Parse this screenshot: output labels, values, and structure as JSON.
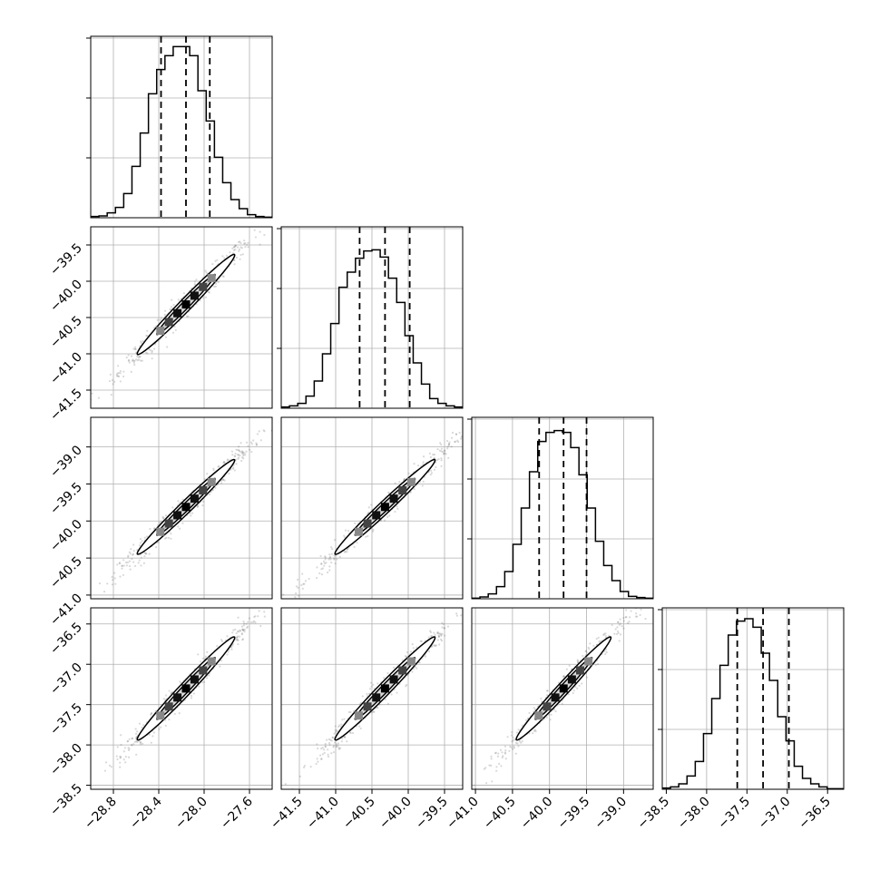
{
  "chart_data": {
    "type": "corner",
    "title": "",
    "grid": true,
    "colors": {
      "line": "#000000",
      "grid": "#b0b0b0",
      "scatter": "#666666"
    },
    "parameters": [
      {
        "index": 0,
        "range": [
          -29.0,
          -27.4
        ],
        "ticks": [
          -28.8,
          -28.4,
          -28.0,
          -27.6
        ],
        "tick_labels": [
          "−28.8",
          "−28.4",
          "−28.0",
          "−27.6"
        ],
        "quantiles": [
          -28.38,
          -28.16,
          -27.95
        ]
      },
      {
        "index": 1,
        "range": [
          -41.75,
          -39.25
        ],
        "ticks": [
          -41.5,
          -41.0,
          -40.5,
          -40.0,
          -39.5
        ],
        "tick_labels": [
          "−41.5",
          "−41.0",
          "−40.5",
          "−40.0",
          "−39.5"
        ],
        "quantiles": [
          -40.67,
          -40.32,
          -39.98
        ]
      },
      {
        "index": 2,
        "range": [
          -41.05,
          -38.6
        ],
        "ticks": [
          -41.0,
          -40.5,
          -40.0,
          -39.5,
          -39.0
        ],
        "tick_labels": [
          "−41.0",
          "−40.5",
          "−40.0",
          "−39.5",
          "−39.0"
        ],
        "quantiles": [
          -40.14,
          -39.81,
          -39.5
        ]
      },
      {
        "index": 3,
        "range": [
          -38.55,
          -36.3
        ],
        "ticks": [
          -38.5,
          -38.0,
          -37.5,
          -37.0,
          -36.5
        ],
        "tick_labels": [
          "−38.5",
          "−38.0",
          "−37.5",
          "−37.0",
          "−36.5"
        ],
        "quantiles": [
          -37.62,
          -37.3,
          -36.98
        ]
      }
    ],
    "hist_counts": [
      [
        2,
        3,
        8,
        17,
        40,
        85,
        140,
        205,
        245,
        268,
        283,
        283,
        268,
        210,
        160,
        100,
        58,
        30,
        15,
        5,
        2,
        1
      ],
      [
        2,
        4,
        8,
        20,
        45,
        90,
        140,
        200,
        225,
        248,
        260,
        262,
        250,
        215,
        175,
        120,
        75,
        40,
        16,
        8,
        4,
        2
      ],
      [
        1,
        3,
        8,
        20,
        45,
        90,
        150,
        210,
        260,
        275,
        278,
        275,
        250,
        205,
        150,
        95,
        55,
        30,
        12,
        4,
        2,
        1
      ],
      [
        2,
        4,
        9,
        22,
        46,
        92,
        150,
        205,
        255,
        278,
        282,
        268,
        225,
        180,
        120,
        80,
        38,
        18,
        9,
        4,
        1,
        1
      ]
    ],
    "hist_ymax": 300,
    "correlation": 0.985
  }
}
